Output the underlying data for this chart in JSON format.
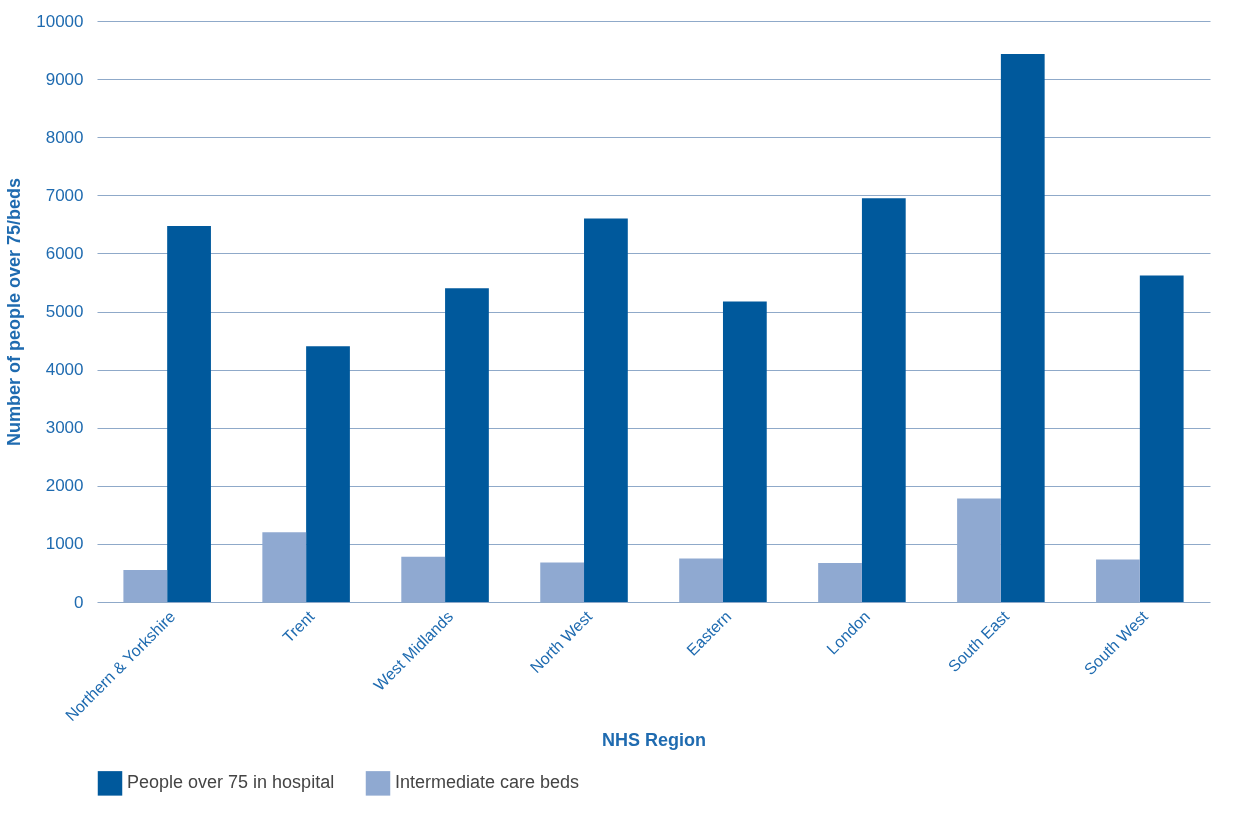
{
  "chart_data": {
    "type": "bar",
    "xlabel": "NHS Region",
    "ylabel": "Number of people over 75/beds",
    "categories": [
      "Northern & Yorkshire",
      "Trent",
      "West Midlands",
      "North West",
      "Eastern",
      "London",
      "South East",
      "South West"
    ],
    "series": [
      {
        "name": "People over 75 in hospital",
        "color": "#00599c",
        "values": [
          6470,
          4400,
          5400,
          6600,
          5170,
          6950,
          9430,
          5620
        ]
      },
      {
        "name": "Intermediate care beds",
        "color": "#8fa9d1",
        "values": [
          550,
          1200,
          780,
          680,
          750,
          670,
          1780,
          730
        ]
      }
    ],
    "ylim": [
      0,
      10000
    ],
    "yticks": [
      0,
      1000,
      2000,
      3000,
      4000,
      5000,
      6000,
      7000,
      8000,
      9000,
      10000
    ],
    "grid": "y",
    "legend": "bottom"
  }
}
